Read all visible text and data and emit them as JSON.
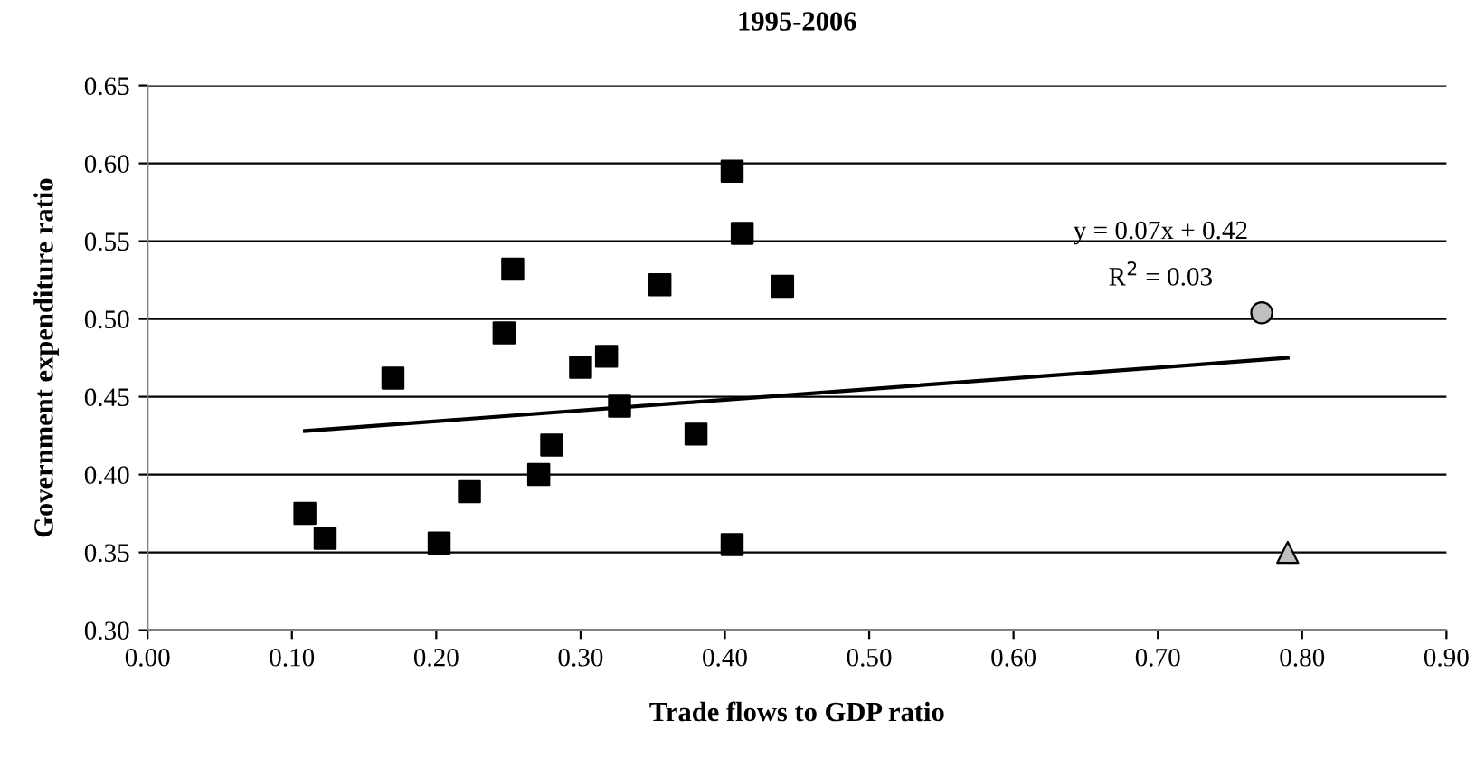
{
  "chart_data": {
    "type": "scatter",
    "title": "1995-2006",
    "xlabel": "Trade flows to GDP ratio",
    "ylabel": "Government expenditure ratio",
    "xlim": [
      0,
      0.9
    ],
    "xticks": [
      {
        "value": 0,
        "label": "0.00"
      },
      {
        "value": 0.1,
        "label": "0.10"
      },
      {
        "value": 0.2,
        "label": "0.20"
      },
      {
        "value": 0.3,
        "label": "0.30"
      },
      {
        "value": 0.4,
        "label": "0.40"
      },
      {
        "value": 0.5,
        "label": "0.50"
      },
      {
        "value": 0.6,
        "label": "0.60"
      },
      {
        "value": 0.7,
        "label": "0.70"
      },
      {
        "value": 0.8,
        "label": "0.80"
      },
      {
        "value": 0.9,
        "label": "0.90"
      }
    ],
    "ylim": [
      0.3,
      0.65
    ],
    "yticks": [
      {
        "value": 0.3,
        "label": "0.30"
      },
      {
        "value": 0.35,
        "label": "0.35"
      },
      {
        "value": 0.4,
        "label": "0.40"
      },
      {
        "value": 0.45,
        "label": "0.45"
      },
      {
        "value": 0.5,
        "label": "0.50"
      },
      {
        "value": 0.55,
        "label": "0.55"
      },
      {
        "value": 0.6,
        "label": "0.60"
      },
      {
        "value": 0.65,
        "label": "0.65"
      }
    ],
    "grid": "y",
    "series": [
      {
        "color": "#000000",
        "marker": "square",
        "x": [
          0.109,
          0.123,
          0.17,
          0.202,
          0.223,
          0.247,
          0.253,
          0.271,
          0.28,
          0.3,
          0.318,
          0.327,
          0.355,
          0.38,
          0.405,
          0.405,
          0.412,
          0.44
        ],
        "values": [
          0.375,
          0.359,
          0.462,
          0.356,
          0.389,
          0.491,
          0.532,
          0.4,
          0.419,
          0.469,
          0.476,
          0.444,
          0.522,
          0.426,
          0.595,
          0.355,
          0.555,
          0.521
        ]
      },
      {
        "color": "#c0c0c0",
        "marker": "circle",
        "x": [
          0.772
        ],
        "values": [
          0.504
        ]
      },
      {
        "color": "#c0c0c0",
        "marker": "triangle",
        "x": [
          0.79
        ],
        "values": [
          0.35
        ]
      },
      {
        "type": "line",
        "color": "#000000",
        "marker": "none",
        "x": [
          0.109,
          0.79
        ],
        "values": [
          0.428,
          0.475
        ]
      }
    ],
    "annotations": [
      "y = 0.07x + 0.42",
      "R$^{2}$ = 0.03"
    ]
  }
}
